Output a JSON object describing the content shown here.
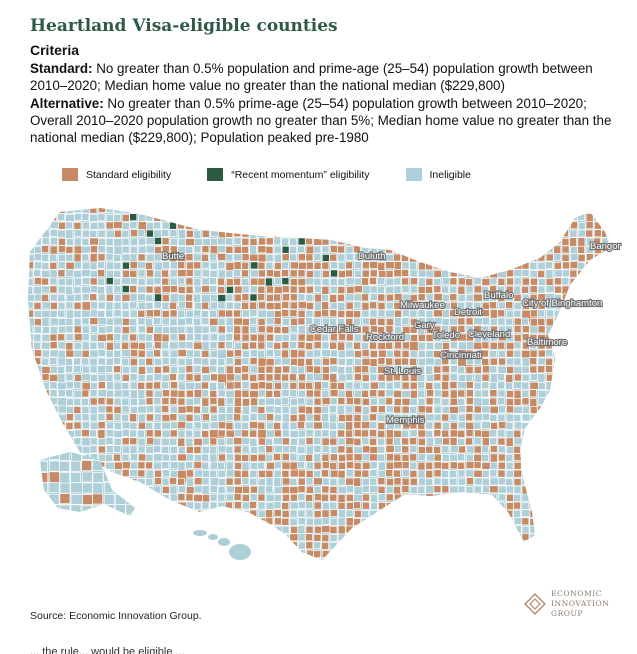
{
  "title": "Heartland Visa-eligible counties",
  "criteria": {
    "heading": "Criteria",
    "standard_label": "Standard:",
    "standard_text": " No greater than 0.5% population and prime-age (25–54) population growth between 2010–2020; Median home value no greater than the national median ($229,800)",
    "alternative_label": "Alternative:",
    "alternative_text": " No greater than 0.5% prime-age (25–54) population growth between 2010–2020; Overall 2010–2020 population growth no greater than 5%; Median home value no greater than the national median ($229,800); Population peaked pre-1980"
  },
  "legend": [
    {
      "label": "Standard eligibility",
      "color": "#c68a64"
    },
    {
      "label": "“Recent momentum” eligibility",
      "color": "#2a5a40"
    },
    {
      "label": "Ineligible",
      "color": "#aecfd8"
    }
  ],
  "cities": [
    "Bangor",
    "Butte",
    "Duluth",
    "Buffalo",
    "City of Binghamton",
    "Milwaukee",
    "Detroit",
    "Gary",
    "Cedar Falls",
    "Rockford",
    "Toledo",
    "Cleveland",
    "Baltimore",
    "Cincinnati",
    "St. Louis",
    "Memphis"
  ],
  "source": "Source: Economic Innovation Group.",
  "logo": {
    "line1": "ECONOMIC",
    "line2": "INNOVATION",
    "line3": "GROUP"
  },
  "trailing_text": "... the rule... would be eligible ... "
}
